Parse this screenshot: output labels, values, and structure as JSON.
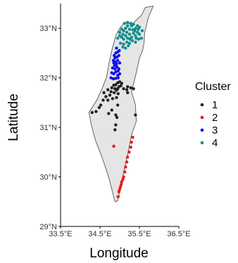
{
  "chart_data": {
    "type": "scatter",
    "title": "",
    "xlabel": "Longitude",
    "ylabel": "Latitude",
    "xlim": [
      33.5,
      36.5
    ],
    "ylim": [
      29.0,
      33.5
    ],
    "x_ticks": [
      {
        "value": 33.5,
        "label": "33.5°E"
      },
      {
        "value": 34.5,
        "label": "34.5°E"
      },
      {
        "value": 35.5,
        "label": "35.5°E"
      },
      {
        "value": 36.5,
        "label": "36.5°E"
      }
    ],
    "y_ticks": [
      {
        "value": 29,
        "label": "29°N"
      },
      {
        "value": 30,
        "label": "30°N"
      },
      {
        "value": 31,
        "label": "31°N"
      },
      {
        "value": 32,
        "label": "32°N"
      },
      {
        "value": 33,
        "label": "33°N"
      }
    ],
    "grid": false,
    "legend": {
      "title": "Cluster",
      "position": "right",
      "entries": [
        {
          "label": "1",
          "color": "#222222"
        },
        {
          "label": "2",
          "color": "#e41a1c"
        },
        {
          "label": "3",
          "color": "#1010ee"
        },
        {
          "label": "4",
          "color": "#138d8d"
        }
      ]
    },
    "basemap": {
      "fill": "#e5e5e5",
      "stroke": "#444444",
      "outline": [
        [
          35.1,
          33.09
        ],
        [
          35.33,
          33.1
        ],
        [
          35.55,
          33.26
        ],
        [
          35.65,
          33.42
        ],
        [
          35.85,
          33.45
        ],
        [
          35.72,
          33.2
        ],
        [
          35.63,
          32.9
        ],
        [
          35.62,
          32.72
        ],
        [
          35.58,
          32.55
        ],
        [
          35.5,
          32.4
        ],
        [
          35.42,
          32.1
        ],
        [
          35.3,
          31.72
        ],
        [
          35.4,
          31.45
        ],
        [
          35.42,
          31.12
        ],
        [
          35.3,
          30.85
        ],
        [
          35.2,
          30.45
        ],
        [
          35.1,
          30.1
        ],
        [
          35.0,
          29.7
        ],
        [
          34.95,
          29.52
        ],
        [
          34.88,
          29.5
        ],
        [
          34.72,
          30.0
        ],
        [
          34.55,
          30.4
        ],
        [
          34.38,
          30.75
        ],
        [
          34.28,
          31.05
        ],
        [
          34.22,
          31.3
        ],
        [
          34.42,
          31.55
        ],
        [
          34.55,
          31.78
        ],
        [
          34.66,
          32.0
        ],
        [
          34.73,
          32.3
        ],
        [
          34.8,
          32.55
        ],
        [
          34.9,
          32.85
        ],
        [
          35.0,
          33.0
        ],
        [
          35.1,
          33.09
        ]
      ]
    },
    "series": [
      {
        "name": "1",
        "color": "#222222",
        "points": [
          [
            34.95,
            31.9
          ],
          [
            35.0,
            31.92
          ],
          [
            35.05,
            31.89
          ],
          [
            34.85,
            31.85
          ],
          [
            34.9,
            31.86
          ],
          [
            34.98,
            31.82
          ],
          [
            35.03,
            31.84
          ],
          [
            34.8,
            31.8
          ],
          [
            34.88,
            31.78
          ],
          [
            34.95,
            31.78
          ],
          [
            35.1,
            31.78
          ],
          [
            35.2,
            31.82
          ],
          [
            35.28,
            31.8
          ],
          [
            35.35,
            31.78
          ],
          [
            34.7,
            31.76
          ],
          [
            34.78,
            31.72
          ],
          [
            34.86,
            31.7
          ],
          [
            34.92,
            31.75
          ],
          [
            34.75,
            31.65
          ],
          [
            34.65,
            31.62
          ],
          [
            34.58,
            31.55
          ],
          [
            34.52,
            31.45
          ],
          [
            34.7,
            31.55
          ],
          [
            34.82,
            31.58
          ],
          [
            34.92,
            31.6
          ],
          [
            35.2,
            31.7
          ],
          [
            34.8,
            31.35
          ],
          [
            34.9,
            31.25
          ],
          [
            34.72,
            31.28
          ],
          [
            34.48,
            31.4
          ],
          [
            34.3,
            31.3
          ],
          [
            34.4,
            31.32
          ],
          [
            34.95,
            31.45
          ],
          [
            35.4,
            31.25
          ],
          [
            34.9,
            31.05
          ],
          [
            34.88,
            30.95
          ],
          [
            34.93,
            31.2
          ],
          [
            34.96,
            31.68
          ],
          [
            35.18,
            31.76
          ],
          [
            34.6,
            31.7
          ]
        ]
      },
      {
        "name": "2",
        "color": "#e41a1c",
        "points": [
          [
            35.33,
            30.8
          ],
          [
            35.3,
            30.7
          ],
          [
            35.28,
            30.6
          ],
          [
            35.24,
            30.5
          ],
          [
            35.2,
            30.4
          ],
          [
            35.18,
            30.3
          ],
          [
            35.15,
            30.2
          ],
          [
            35.13,
            30.1
          ],
          [
            35.1,
            30.0
          ],
          [
            35.08,
            29.95
          ],
          [
            35.05,
            29.9
          ],
          [
            35.04,
            29.85
          ],
          [
            35.02,
            29.8
          ],
          [
            35.0,
            29.75
          ],
          [
            34.98,
            29.7
          ],
          [
            34.96,
            29.6
          ],
          [
            34.85,
            30.62
          ]
        ]
      },
      {
        "name": "3",
        "color": "#1010ee",
        "points": [
          [
            34.92,
            32.6
          ],
          [
            34.9,
            32.5
          ],
          [
            34.95,
            32.52
          ],
          [
            34.88,
            32.4
          ],
          [
            34.93,
            32.42
          ],
          [
            34.98,
            32.45
          ],
          [
            34.85,
            32.3
          ],
          [
            34.9,
            32.32
          ],
          [
            34.95,
            32.35
          ],
          [
            35.0,
            32.3
          ],
          [
            34.82,
            32.2
          ],
          [
            34.88,
            32.18
          ],
          [
            34.93,
            32.22
          ],
          [
            34.98,
            32.18
          ],
          [
            34.8,
            32.1
          ],
          [
            34.85,
            32.08
          ],
          [
            34.9,
            32.12
          ],
          [
            34.95,
            32.05
          ],
          [
            34.78,
            32.0
          ],
          [
            34.84,
            31.98
          ],
          [
            34.9,
            31.99
          ],
          [
            34.96,
            32.0
          ],
          [
            35.0,
            32.08
          ],
          [
            34.87,
            32.25
          ],
          [
            34.84,
            32.35
          ],
          [
            34.99,
            32.55
          ],
          [
            34.86,
            32.45
          ],
          [
            34.92,
            32.28
          ],
          [
            34.96,
            32.14
          ]
        ]
      },
      {
        "name": "4",
        "color": "#138d8d",
        "points": [
          [
            34.95,
            32.8
          ],
          [
            35.0,
            32.85
          ],
          [
            35.05,
            32.82
          ],
          [
            35.1,
            32.78
          ],
          [
            35.15,
            32.85
          ],
          [
            35.2,
            32.8
          ],
          [
            35.25,
            32.88
          ],
          [
            35.3,
            32.82
          ],
          [
            35.35,
            32.9
          ],
          [
            35.4,
            32.85
          ],
          [
            35.45,
            32.92
          ],
          [
            35.5,
            32.88
          ],
          [
            35.0,
            32.92
          ],
          [
            35.05,
            32.98
          ],
          [
            35.1,
            32.95
          ],
          [
            35.15,
            33.0
          ],
          [
            35.2,
            33.05
          ],
          [
            35.25,
            32.98
          ],
          [
            35.3,
            33.05
          ],
          [
            35.35,
            33.08
          ],
          [
            35.4,
            33.0
          ],
          [
            35.45,
            33.05
          ],
          [
            35.5,
            33.02
          ],
          [
            35.12,
            33.1
          ],
          [
            35.2,
            33.12
          ],
          [
            35.28,
            33.1
          ],
          [
            35.02,
            32.7
          ],
          [
            35.1,
            32.68
          ],
          [
            35.18,
            32.72
          ],
          [
            35.25,
            32.7
          ],
          [
            35.32,
            32.75
          ],
          [
            35.4,
            32.72
          ],
          [
            35.48,
            32.78
          ],
          [
            35.55,
            32.8
          ],
          [
            35.08,
            32.62
          ],
          [
            35.15,
            32.6
          ],
          [
            35.22,
            32.65
          ],
          [
            35.38,
            32.95
          ],
          [
            35.47,
            32.98
          ],
          [
            35.33,
            32.97
          ],
          [
            35.08,
            32.88
          ],
          [
            35.18,
            32.92
          ],
          [
            35.42,
            32.8
          ],
          [
            35.26,
            32.78
          ],
          [
            35.57,
            32.95
          ]
        ]
      }
    ]
  }
}
